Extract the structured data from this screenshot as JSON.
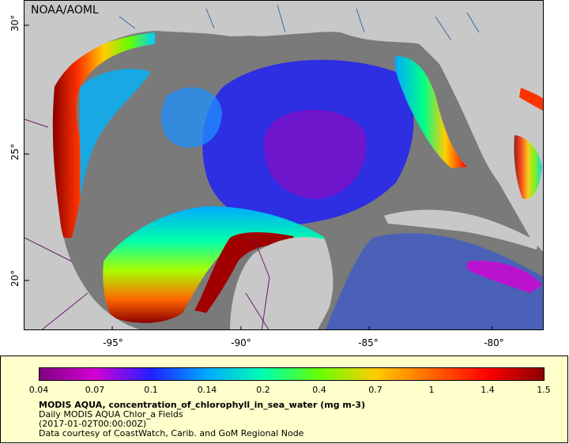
{
  "agency_label": "NOAA/AOML",
  "y_ticks": [
    "30°",
    "25°",
    "20°"
  ],
  "x_ticks": [
    "-95°",
    "-90°",
    "-85°",
    "-80°"
  ],
  "colors": {
    "land": "#c8c8c8",
    "no_data_ocean": "#7a7a7a",
    "legend_bg": "#ffffcc",
    "rivers": "#3a6aa0",
    "borders": "#6a1b6a"
  },
  "legend": {
    "colormap_stops": [
      "#7f007f",
      "#d400d4",
      "#2020ff",
      "#00aaff",
      "#00ffb0",
      "#66ff00",
      "#ffcc00",
      "#ff6600",
      "#ff0000",
      "#8b0000"
    ],
    "tick_labels": [
      "0.04",
      "0.07",
      "0.1",
      "0.14",
      "0.2",
      "0.4",
      "0.7",
      "1",
      "1.4",
      "1.5"
    ],
    "title": "MODIS AQUA, concentration_of_chlorophyll_in_sea_water (mg m-3)",
    "line2": "Daily MODIS AQUA Chlor_a Fields",
    "line3": "(2017-01-02T00:00:00Z)",
    "line4": "Data courtesy of CoastWatch, Carib. and GoM Regional Node"
  }
}
